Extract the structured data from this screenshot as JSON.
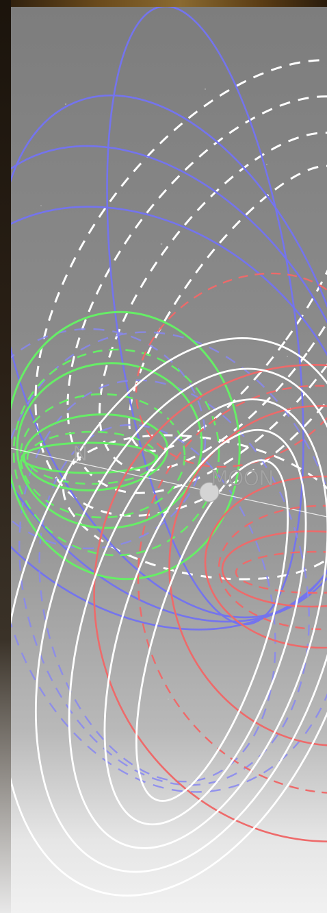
{
  "labels": {
    "earth": "N",
    "moon": "MOON"
  },
  "colors": {
    "frame_dark": "#1b140c",
    "frame_gold": "#8a6a30",
    "sky_top": "#7d7d7d",
    "sky_bottom": "#f1f1f1",
    "orbit_blue": "#7474ee",
    "orbit_white": "#ffffff",
    "orbit_green": "#66ee66",
    "orbit_red": "#ee6a6a",
    "moon_disc": "#d4d4d4"
  }
}
